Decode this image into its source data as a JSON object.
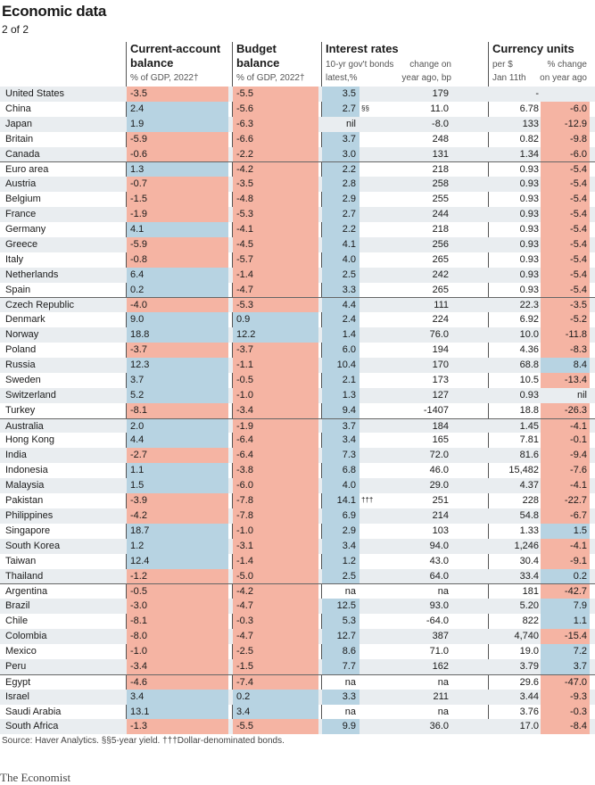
{
  "header": {
    "title": "Economic data",
    "subtitle": "2 of 2"
  },
  "columns": {
    "ca": {
      "title": "Current-account",
      "title2": "balance",
      "sub": "% of GDP, 2022†"
    },
    "bb": {
      "title": "Budget",
      "title2": "balance",
      "sub": "% of GDP, 2022†"
    },
    "ir": {
      "title": "Interest rates",
      "sub1a": "10-yr gov't bonds",
      "sub1b": "change on",
      "sub2a": "latest,%",
      "sub2b": "year ago, bp"
    },
    "cu": {
      "title": "Currency units",
      "sub1a": "per $",
      "sub1b": "% change",
      "sub2a": "Jan 11th",
      "sub2b": "on year ago"
    }
  },
  "rows": [
    {
      "c": "United States",
      "ca": "-3.5",
      "bb": "-5.5",
      "ir": "3.5",
      "n": "",
      "irc": "179",
      "cur": "-",
      "curc": "",
      "g": 1
    },
    {
      "c": "China",
      "ca": "2.4",
      "bb": "-5.6",
      "ir": "2.7",
      "n": "§§",
      "irc": "11.0",
      "cur": "6.78",
      "curc": "-6.0",
      "g": 0
    },
    {
      "c": "Japan",
      "ca": "1.9",
      "bb": "-6.3",
      "ir": "nil",
      "n": "",
      "irc": "-8.0",
      "cur": "133",
      "curc": "-12.9",
      "g": 0
    },
    {
      "c": "Britain",
      "ca": "-5.9",
      "bb": "-6.6",
      "ir": "3.7",
      "n": "",
      "irc": "248",
      "cur": "0.82",
      "curc": "-9.8",
      "g": 0
    },
    {
      "c": "Canada",
      "ca": "-0.6",
      "bb": "-2.2",
      "ir": "3.0",
      "n": "",
      "irc": "131",
      "cur": "1.34",
      "curc": "-6.0",
      "g": 0
    },
    {
      "c": "Euro area",
      "ca": "1.3",
      "bb": "-4.2",
      "ir": "2.2",
      "n": "",
      "irc": "218",
      "cur": "0.93",
      "curc": "-5.4",
      "g": 1
    },
    {
      "c": "Austria",
      "ca": "-0.7",
      "bb": "-3.5",
      "ir": "2.8",
      "n": "",
      "irc": "258",
      "cur": "0.93",
      "curc": "-5.4",
      "g": 0
    },
    {
      "c": "Belgium",
      "ca": "-1.5",
      "bb": "-4.8",
      "ir": "2.9",
      "n": "",
      "irc": "255",
      "cur": "0.93",
      "curc": "-5.4",
      "g": 0
    },
    {
      "c": "France",
      "ca": "-1.9",
      "bb": "-5.3",
      "ir": "2.7",
      "n": "",
      "irc": "244",
      "cur": "0.93",
      "curc": "-5.4",
      "g": 0
    },
    {
      "c": "Germany",
      "ca": "4.1",
      "bb": "-4.1",
      "ir": "2.2",
      "n": "",
      "irc": "218",
      "cur": "0.93",
      "curc": "-5.4",
      "g": 0
    },
    {
      "c": "Greece",
      "ca": "-5.9",
      "bb": "-4.5",
      "ir": "4.1",
      "n": "",
      "irc": "256",
      "cur": "0.93",
      "curc": "-5.4",
      "g": 0
    },
    {
      "c": "Italy",
      "ca": "-0.8",
      "bb": "-5.7",
      "ir": "4.0",
      "n": "",
      "irc": "265",
      "cur": "0.93",
      "curc": "-5.4",
      "g": 0
    },
    {
      "c": "Netherlands",
      "ca": "6.4",
      "bb": "-1.4",
      "ir": "2.5",
      "n": "",
      "irc": "242",
      "cur": "0.93",
      "curc": "-5.4",
      "g": 0
    },
    {
      "c": "Spain",
      "ca": "0.2",
      "bb": "-4.7",
      "ir": "3.3",
      "n": "",
      "irc": "265",
      "cur": "0.93",
      "curc": "-5.4",
      "g": 0
    },
    {
      "c": "Czech Republic",
      "ca": "-4.0",
      "bb": "-5.3",
      "ir": "4.4",
      "n": "",
      "irc": "111",
      "cur": "22.3",
      "curc": "-3.5",
      "g": 1
    },
    {
      "c": "Denmark",
      "ca": "9.0",
      "bb": "0.9",
      "ir": "2.4",
      "n": "",
      "irc": "224",
      "cur": "6.92",
      "curc": "-5.2",
      "g": 0
    },
    {
      "c": "Norway",
      "ca": "18.8",
      "bb": "12.2",
      "ir": "1.4",
      "n": "",
      "irc": "76.0",
      "cur": "10.0",
      "curc": "-11.8",
      "g": 0
    },
    {
      "c": "Poland",
      "ca": "-3.7",
      "bb": "-3.7",
      "ir": "6.0",
      "n": "",
      "irc": "194",
      "cur": "4.36",
      "curc": "-8.3",
      "g": 0
    },
    {
      "c": "Russia",
      "ca": "12.3",
      "bb": "-1.1",
      "ir": "10.4",
      "n": "",
      "irc": "170",
      "cur": "68.8",
      "curc": "8.4",
      "g": 0
    },
    {
      "c": "Sweden",
      "ca": "3.7",
      "bb": "-0.5",
      "ir": "2.1",
      "n": "",
      "irc": "173",
      "cur": "10.5",
      "curc": "-13.4",
      "g": 0
    },
    {
      "c": "Switzerland",
      "ca": "5.2",
      "bb": "-1.0",
      "ir": "1.3",
      "n": "",
      "irc": "127",
      "cur": "0.93",
      "curc": "nil",
      "g": 0
    },
    {
      "c": "Turkey",
      "ca": "-8.1",
      "bb": "-3.4",
      "ir": "9.4",
      "n": "",
      "irc": "-1407",
      "cur": "18.8",
      "curc": "-26.3",
      "g": 0
    },
    {
      "c": "Australia",
      "ca": "2.0",
      "bb": "-1.9",
      "ir": "3.7",
      "n": "",
      "irc": "184",
      "cur": "1.45",
      "curc": "-4.1",
      "g": 1
    },
    {
      "c": "Hong Kong",
      "ca": "4.4",
      "bb": "-6.4",
      "ir": "3.4",
      "n": "",
      "irc": "165",
      "cur": "7.81",
      "curc": "-0.1",
      "g": 0
    },
    {
      "c": "India",
      "ca": "-2.7",
      "bb": "-6.4",
      "ir": "7.3",
      "n": "",
      "irc": "72.0",
      "cur": "81.6",
      "curc": "-9.4",
      "g": 0
    },
    {
      "c": "Indonesia",
      "ca": "1.1",
      "bb": "-3.8",
      "ir": "6.8",
      "n": "",
      "irc": "46.0",
      "cur": "15,482",
      "curc": "-7.6",
      "g": 0
    },
    {
      "c": "Malaysia",
      "ca": "1.5",
      "bb": "-6.0",
      "ir": "4.0",
      "n": "",
      "irc": "29.0",
      "cur": "4.37",
      "curc": "-4.1",
      "g": 0
    },
    {
      "c": "Pakistan",
      "ca": "-3.9",
      "bb": "-7.8",
      "ir": "14.1",
      "n": "†††",
      "irc": "251",
      "cur": "228",
      "curc": "-22.7",
      "g": 0
    },
    {
      "c": "Philippines",
      "ca": "-4.2",
      "bb": "-7.8",
      "ir": "6.9",
      "n": "",
      "irc": "214",
      "cur": "54.8",
      "curc": "-6.7",
      "g": 0
    },
    {
      "c": "Singapore",
      "ca": "18.7",
      "bb": "-1.0",
      "ir": "2.9",
      "n": "",
      "irc": "103",
      "cur": "1.33",
      "curc": "1.5",
      "g": 0
    },
    {
      "c": "South Korea",
      "ca": "1.2",
      "bb": "-3.1",
      "ir": "3.4",
      "n": "",
      "irc": "94.0",
      "cur": "1,246",
      "curc": "-4.1",
      "g": 0
    },
    {
      "c": "Taiwan",
      "ca": "12.4",
      "bb": "-1.4",
      "ir": "1.2",
      "n": "",
      "irc": "43.0",
      "cur": "30.4",
      "curc": "-9.1",
      "g": 0
    },
    {
      "c": "Thailand",
      "ca": "-1.2",
      "bb": "-5.0",
      "ir": "2.5",
      "n": "",
      "irc": "64.0",
      "cur": "33.4",
      "curc": "0.2",
      "g": 0
    },
    {
      "c": "Argentina",
      "ca": "-0.5",
      "bb": "-4.2",
      "ir": "na",
      "n": "",
      "irc": "na",
      "cur": "181",
      "curc": "-42.7",
      "g": 1
    },
    {
      "c": "Brazil",
      "ca": "-3.0",
      "bb": "-4.7",
      "ir": "12.5",
      "n": "",
      "irc": "93.0",
      "cur": "5.20",
      "curc": "7.9",
      "g": 0
    },
    {
      "c": "Chile",
      "ca": "-8.1",
      "bb": "-0.3",
      "ir": "5.3",
      "n": "",
      "irc": "-64.0",
      "cur": "822",
      "curc": "1.1",
      "g": 0
    },
    {
      "c": "Colombia",
      "ca": "-8.0",
      "bb": "-4.7",
      "ir": "12.7",
      "n": "",
      "irc": "387",
      "cur": "4,740",
      "curc": "-15.4",
      "g": 0
    },
    {
      "c": "Mexico",
      "ca": "-1.0",
      "bb": "-2.5",
      "ir": "8.6",
      "n": "",
      "irc": "71.0",
      "cur": "19.0",
      "curc": "7.2",
      "g": 0
    },
    {
      "c": "Peru",
      "ca": "-3.4",
      "bb": "-1.5",
      "ir": "7.7",
      "n": "",
      "irc": "162",
      "cur": "3.79",
      "curc": "3.7",
      "g": 0
    },
    {
      "c": "Egypt",
      "ca": "-4.6",
      "bb": "-7.4",
      "ir": "na",
      "n": "",
      "irc": "na",
      "cur": "29.6",
      "curc": "-47.0",
      "g": 1
    },
    {
      "c": "Israel",
      "ca": "3.4",
      "bb": "0.2",
      "ir": "3.3",
      "n": "",
      "irc": "211",
      "cur": "3.44",
      "curc": "-9.3",
      "g": 0
    },
    {
      "c": "Saudi Arabia",
      "ca": "13.1",
      "bb": "3.4",
      "ir": "na",
      "n": "",
      "irc": "na",
      "cur": "3.76",
      "curc": "-0.3",
      "g": 0
    },
    {
      "c": "South Africa",
      "ca": "-1.3",
      "bb": "-5.5",
      "ir": "9.9",
      "n": "",
      "irc": "36.0",
      "cur": "17.0",
      "curc": "-8.4",
      "g": 0
    }
  ],
  "footer": {
    "source": "Source: Haver Analytics. §§5-year yield. †††Dollar-denominated bonds.",
    "brand": "The Economist"
  },
  "colors": {
    "positive": "#b7d3e2",
    "negative": "#f5b4a3",
    "alt_row": "#e9edf0"
  }
}
